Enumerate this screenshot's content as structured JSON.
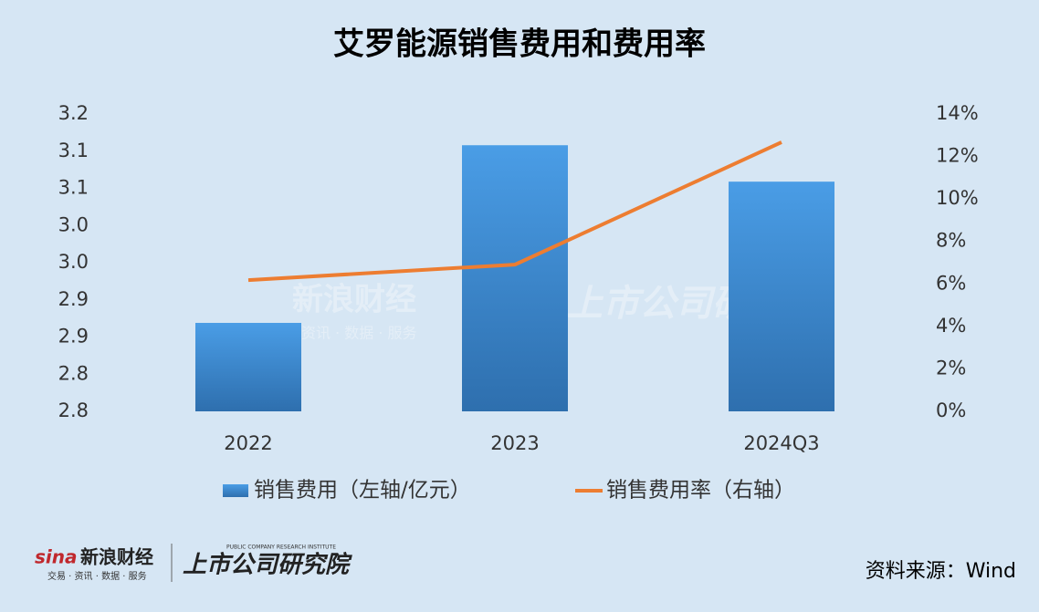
{
  "chart_data": {
    "type": "bar",
    "title": "艾罗能源销售费用和费用率",
    "categories": [
      "2022",
      "2023",
      "2024Q3"
    ],
    "series": [
      {
        "name": "销售费用（左轴/亿元）",
        "type": "bar",
        "color": "#3d8ad6",
        "values": [
          2.919,
          3.158,
          3.109
        ]
      },
      {
        "name": "销售费用率（右轴）",
        "type": "line",
        "axis": "y2",
        "color": "#ed7d31",
        "values": [
          6.18,
          6.91,
          12.67
        ]
      }
    ],
    "ylim": [
      2.8,
      3.2
    ],
    "yticks": [
      {
        "value": 2.8,
        "label": "2.8"
      },
      {
        "value": 2.85,
        "label": "2.8"
      },
      {
        "value": 2.9,
        "label": "2.9"
      },
      {
        "value": 2.95,
        "label": "2.9"
      },
      {
        "value": 3.0,
        "label": "3.0"
      },
      {
        "value": 3.05,
        "label": "3.0"
      },
      {
        "value": 3.1,
        "label": "3.1"
      },
      {
        "value": 3.15,
        "label": "3.1"
      },
      {
        "value": 3.2,
        "label": "3.2"
      }
    ],
    "y2lim": [
      0,
      14
    ],
    "y2ticks": [
      {
        "value": 0,
        "label": "0%"
      },
      {
        "value": 2,
        "label": "2%"
      },
      {
        "value": 4,
        "label": "4%"
      },
      {
        "value": 6,
        "label": "6%"
      },
      {
        "value": 8,
        "label": "8%"
      },
      {
        "value": 10,
        "label": "10%"
      },
      {
        "value": 12,
        "label": "12%"
      },
      {
        "value": 14,
        "label": "14%"
      }
    ],
    "grid": false,
    "legend": "bottom",
    "source": "资料来源：Wind"
  },
  "branding": {
    "sina": "新浪财经",
    "sina_tagline": "交易 · 资讯 · 数据 · 服务",
    "institute": "上市公司研究院",
    "institute_en": "PUBLIC COMPANY RESEARCH INSTITUTE",
    "watermark_sina": "新浪财经",
    "watermark_tagline": "资讯 · 数据 · 服务",
    "watermark_institute": "上市公司研究院"
  }
}
